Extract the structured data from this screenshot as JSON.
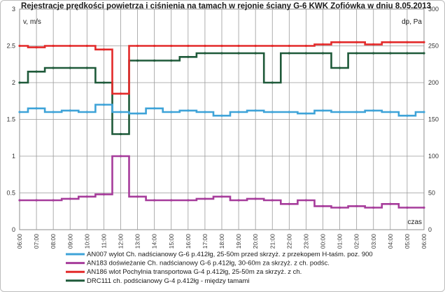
{
  "chart_data": {
    "type": "line",
    "title": "Rejestracje prędkości powietrza  i ciśnienia na tamach w rejonie ściany G-6 KWK Zofiówka w dniu 8.05.2013",
    "ylabel_left": "v, m/s",
    "ylabel_right": "dp, Pa",
    "xlabel": "czas",
    "ylim_left": [
      0,
      3
    ],
    "ylim_right": [
      0,
      300
    ],
    "yticks_left": [
      "0",
      "0.5",
      "1",
      "1.5",
      "2",
      "2.5",
      "3"
    ],
    "yticks_right": [
      "0",
      "50",
      "100",
      "150",
      "200",
      "250",
      "300"
    ],
    "grid": true,
    "categories": [
      "06:00",
      "07:00",
      "08:00",
      "09:00",
      "10:00",
      "11:00",
      "12:00",
      "13:00",
      "14:00",
      "15:00",
      "16:00",
      "17:00",
      "18:00",
      "19:00",
      "20:00",
      "21:00",
      "22:00",
      "23:00",
      "00:00",
      "01:00",
      "02:00",
      "03:00",
      "04:00",
      "05:00",
      "06:00"
    ],
    "series": [
      {
        "name": "AN007 wylot Ch. nadścianowy G-6 p.412łg, 25-50m przed skrzyż. z przekopem H-taśm. poz. 900",
        "axis": "left",
        "color": "#3ea3d8",
        "values": [
          1.6,
          1.65,
          1.6,
          1.62,
          1.6,
          1.7,
          1.6,
          1.58,
          1.65,
          1.6,
          1.62,
          1.6,
          1.55,
          1.6,
          1.62,
          1.6,
          1.6,
          1.58,
          1.62,
          1.6,
          1.6,
          1.62,
          1.6,
          1.55,
          1.6
        ]
      },
      {
        "name": "AN183 doświeżanie Ch. nadścianowy G-6 p.412łg, 30-60m za skrzyż. z ch. podśc.",
        "axis": "left",
        "color": "#a63c9b",
        "values": [
          0.4,
          0.4,
          0.4,
          0.42,
          0.45,
          0.48,
          1.0,
          0.45,
          0.4,
          0.4,
          0.4,
          0.42,
          0.45,
          0.4,
          0.42,
          0.4,
          0.35,
          0.4,
          0.32,
          0.3,
          0.32,
          0.3,
          0.35,
          0.3,
          0.3
        ]
      },
      {
        "name": "AN186 wlot Pochylnia transportowa G-4 p.412łg, 25-50m za skrzyż. z ch.",
        "axis": "left",
        "color": "#e32a2a",
        "values": [
          2.5,
          2.48,
          2.5,
          2.5,
          2.5,
          2.45,
          1.85,
          2.5,
          2.5,
          2.5,
          2.5,
          2.5,
          2.5,
          2.5,
          2.5,
          2.5,
          2.5,
          2.5,
          2.52,
          2.55,
          2.55,
          2.52,
          2.55,
          2.55,
          2.55
        ]
      },
      {
        "name": "DRC111 ch. podścianowy G-4 p.412łg - między tamami",
        "axis": "right",
        "color": "#1f5a3a",
        "values": [
          200,
          215,
          220,
          220,
          220,
          200,
          130,
          230,
          230,
          230,
          235,
          240,
          240,
          240,
          240,
          200,
          240,
          240,
          240,
          220,
          240,
          240,
          240,
          240,
          240
        ]
      }
    ]
  }
}
